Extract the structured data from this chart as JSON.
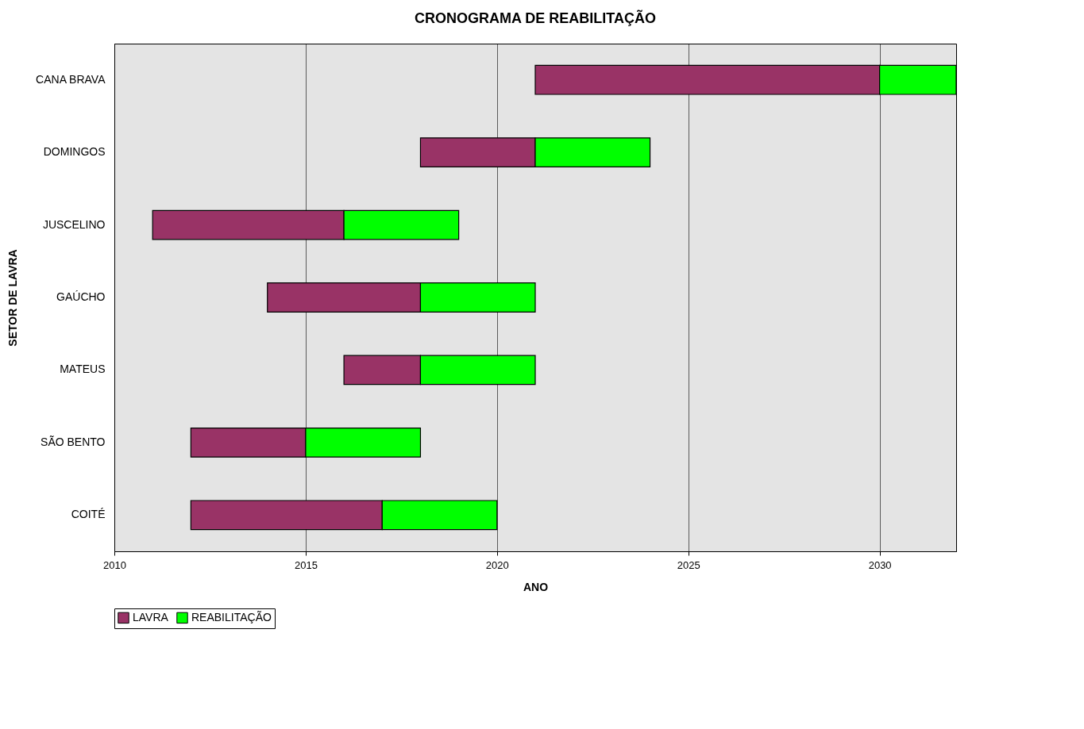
{
  "chart_data": {
    "type": "bar",
    "title": "CRONOGRAMA DE REABILITAÇÃO",
    "xlabel": "ANO",
    "ylabel": "SETOR DE LAVRA",
    "orientation": "horizontal",
    "categories": [
      "CANA BRAVA",
      "DOMINGOS",
      "JUSCELINO",
      "GAÚCHO",
      "MATEUS",
      "SÃO BENTO",
      "COITÉ"
    ],
    "series": [
      {
        "name": "LAVRA",
        "color": "#993366",
        "base": [
          2021,
          2018,
          2011,
          2014,
          2016,
          2012,
          2012
        ],
        "values": [
          9,
          3,
          5,
          4,
          2,
          3,
          5
        ]
      },
      {
        "name": "REABILITAÇÃO",
        "color": "#00ff00",
        "base": [
          2030,
          2021,
          2016,
          2018,
          2018,
          2015,
          2017
        ],
        "values": [
          2,
          3,
          3,
          3,
          3,
          3,
          3
        ]
      }
    ],
    "xlim": [
      2010,
      2032
    ],
    "xticks": [
      2010,
      2015,
      2020,
      2025,
      2030
    ],
    "grid": "x",
    "legend": "bottom"
  }
}
